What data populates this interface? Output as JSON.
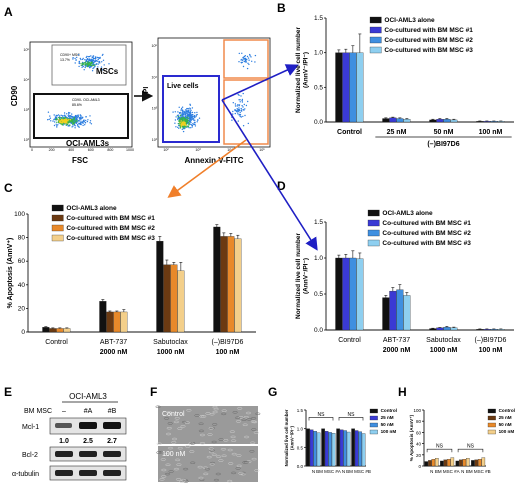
{
  "panel_labels": [
    "A",
    "B",
    "C",
    "D",
    "E",
    "F",
    "G",
    "H"
  ],
  "flow": {
    "left": {
      "y_label": "CD90",
      "x_label": "FSC",
      "gate_mscs": "MSCs",
      "gate_oci": "OCI-AML3s",
      "tiny_msc": "CD90+ MSC",
      "tiny_msc_pct": "13.7%",
      "tiny_oci": "CD90- OCI-AML3",
      "tiny_oci_pct": "85.6%",
      "x_ticks": [
        "0",
        "200",
        "400",
        "600",
        "800",
        "1000"
      ],
      "y_ticks": [
        "10²",
        "10³",
        "10⁴",
        "10⁵"
      ]
    },
    "right": {
      "y_label": "PI",
      "x_label": "Annexin V-FITC",
      "gate_live": "Live cells",
      "x_ticks": [
        "10²",
        "10³",
        "10⁴",
        "10⁵"
      ],
      "y_ticks": [
        "10²",
        "10³",
        "10⁴",
        "10⁵"
      ]
    }
  },
  "colors": {
    "black": "#111111",
    "blue1": "#3a3ad4",
    "blue2": "#3f8fe0",
    "blue3": "#8ecff0",
    "brown": "#6b3a12",
    "orange": "#e8892a",
    "tan": "#f3cf8a",
    "arrow_blue": "#1f1fc4",
    "arrow_orange": "#f07f2a",
    "gate_orange": "#f08a4b",
    "gate_blue": "#2a2ad0"
  },
  "chart_data": [
    {
      "id": "B",
      "type": "bar",
      "ylabel": "Normalized live cell number (AnnV⁻/PI⁻)",
      "categories": [
        "Control",
        "25 nM",
        "50 nM",
        "100 nM"
      ],
      "group_label": "(–)BI97D6",
      "ylim": [
        0,
        1.5
      ],
      "yticks": [
        "0.0",
        "0.5",
        "1.0",
        "1.5"
      ],
      "series": [
        {
          "name": "OCI-AML3 alone",
          "values": [
            1.0,
            0.05,
            0.03,
            0.01
          ],
          "err": [
            0.04,
            0.01,
            0.01,
            0.005
          ]
        },
        {
          "name": "Co-cultured with BM MSC #1",
          "values": [
            1.0,
            0.06,
            0.04,
            0.01
          ],
          "err": [
            0.05,
            0.01,
            0.01,
            0.005
          ]
        },
        {
          "name": "Co-cultured with BM MSC #2",
          "values": [
            1.0,
            0.05,
            0.04,
            0.01
          ],
          "err": [
            0.1,
            0.01,
            0.01,
            0.005
          ]
        },
        {
          "name": "Co-cultured with BM MSC #3",
          "values": [
            1.0,
            0.04,
            0.03,
            0.01
          ],
          "err": [
            0.27,
            0.01,
            0.01,
            0.005
          ]
        }
      ],
      "legend": "top-right"
    },
    {
      "id": "C",
      "type": "bar",
      "ylabel": "% Apoptosis (AnnV⁺)",
      "categories": [
        "Control",
        "ABT-737",
        "Sabutoclax",
        "(–)BI97D6"
      ],
      "sublabels": [
        "",
        "2000 nM",
        "1000 nM",
        "100 nM"
      ],
      "ylim": [
        0,
        100
      ],
      "yticks": [
        "0",
        "20",
        "40",
        "60",
        "80",
        "100"
      ],
      "series": [
        {
          "name": "OCI-AML3 alone",
          "values": [
            4,
            26,
            77,
            89
          ],
          "err": [
            0.5,
            1.5,
            4,
            2
          ]
        },
        {
          "name": "Co-cultured with BM MSC #1",
          "values": [
            3,
            17,
            57,
            81
          ],
          "err": [
            0.5,
            0.8,
            4,
            3
          ]
        },
        {
          "name": "Co-cultured with BM MSC #2",
          "values": [
            3,
            17,
            57,
            81
          ],
          "err": [
            0.5,
            0.8,
            2,
            2.5
          ]
        },
        {
          "name": "Co-cultured with BM MSC #3",
          "values": [
            3,
            17,
            52,
            79
          ],
          "err": [
            0.5,
            2,
            7,
            3
          ]
        }
      ],
      "legend": "top-left"
    },
    {
      "id": "D",
      "type": "bar",
      "ylabel": "Normalized live cell number (AnnV⁻/PI⁻)",
      "categories": [
        "Control",
        "ABT-737",
        "Sabutoclax",
        "(–)BI97D6"
      ],
      "sublabels": [
        "",
        "2000 nM",
        "1000 nM",
        "100 nM"
      ],
      "ylim": [
        0,
        1.5
      ],
      "yticks": [
        "0.0",
        "0.5",
        "1.0",
        "1.5"
      ],
      "series": [
        {
          "name": "OCI-AML3 alone",
          "values": [
            1.0,
            0.45,
            0.02,
            0.01
          ],
          "err": [
            0.04,
            0.03,
            0.005,
            0.005
          ]
        },
        {
          "name": "Co-cultured with BM MSC #1",
          "values": [
            1.0,
            0.54,
            0.03,
            0.01
          ],
          "err": [
            0.05,
            0.05,
            0.005,
            0.005
          ]
        },
        {
          "name": "Co-cultured with BM MSC #2",
          "values": [
            1.0,
            0.56,
            0.04,
            0.01
          ],
          "err": [
            0.1,
            0.07,
            0.01,
            0.005
          ]
        },
        {
          "name": "Co-cultured with BM MSC #3",
          "values": [
            0.99,
            0.48,
            0.03,
            0.01
          ],
          "err": [
            0.08,
            0.04,
            0.01,
            0.005
          ]
        }
      ],
      "legend": "top-right"
    },
    {
      "id": "G",
      "type": "bar",
      "ylabel": "Normalized live cell number (AnnV⁻/PI⁻)",
      "categories": [
        "N",
        "BM MSC #A",
        "N",
        "BM MSC #B"
      ],
      "ylim": [
        0,
        1.5
      ],
      "yticks": [
        "0.0",
        "0.5",
        "1.0",
        "1.5"
      ],
      "series": [
        {
          "name": "Control",
          "values": [
            1.0,
            1.0,
            1.0,
            1.0
          ]
        },
        {
          "name": "25 nM",
          "values": [
            0.97,
            0.93,
            0.97,
            0.95
          ]
        },
        {
          "name": "50 nM",
          "values": [
            0.93,
            0.9,
            0.95,
            0.92
          ]
        },
        {
          "name": "100 nM",
          "values": [
            0.89,
            0.88,
            0.91,
            0.87
          ]
        }
      ],
      "ns": [
        "NS",
        "NS"
      ],
      "legend": "right"
    },
    {
      "id": "H",
      "type": "bar",
      "ylabel": "% Apoptosis (AnnV⁺)",
      "categories": [
        "N",
        "BM MSC #A",
        "N",
        "BM MSC #B"
      ],
      "ylim": [
        0,
        100
      ],
      "yticks": [
        "0",
        "20",
        "40",
        "60",
        "80",
        "100"
      ],
      "series": [
        {
          "name": "Control",
          "values": [
            8,
            9,
            9,
            10
          ]
        },
        {
          "name": "25 nM",
          "values": [
            10,
            11,
            11,
            11
          ]
        },
        {
          "name": "50 nM",
          "values": [
            12,
            12,
            12,
            12
          ]
        },
        {
          "name": "100 nM",
          "values": [
            14,
            15,
            14,
            15
          ]
        }
      ],
      "ns": [
        "NS",
        "NS"
      ],
      "legend": "right"
    }
  ],
  "western": {
    "title": "OCI-AML3",
    "col_label": "BM MSC",
    "cols": [
      "–",
      "#A",
      "#B"
    ],
    "rows": [
      "Mcl-1",
      "Bcl-2",
      "α-tubulin"
    ],
    "mcl_values": [
      "1.0",
      "2.5",
      "2.7"
    ]
  },
  "micro": {
    "top": "Control",
    "bottom": "100 nM"
  }
}
